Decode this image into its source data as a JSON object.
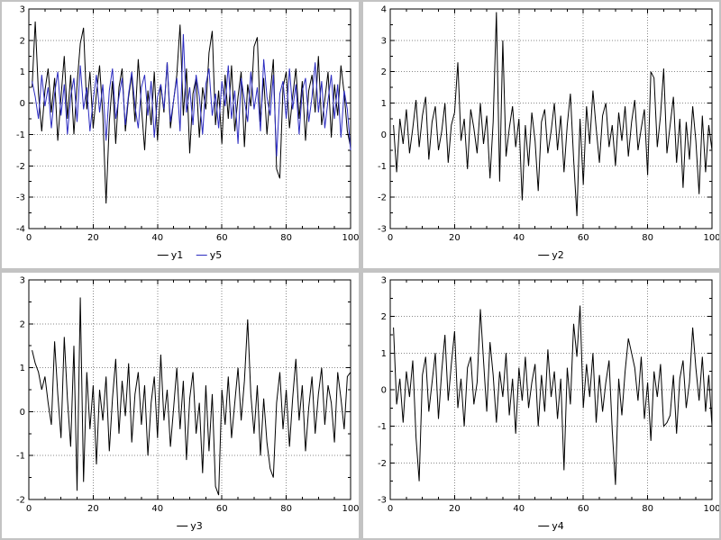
{
  "page": {
    "background_color": "#c3c3c3",
    "panel_background": "#ffffff",
    "grid_color": "#8a8a8a",
    "frame_color": "#000000"
  },
  "chart_data": [
    {
      "type": "line",
      "title": "",
      "xlabel": "",
      "ylabel": "",
      "x_range": [
        0,
        100
      ],
      "ylim": [
        -4,
        3
      ],
      "xticks": [
        0,
        20,
        40,
        60,
        80,
        100
      ],
      "ytick_step": 1,
      "grid": true,
      "legend_position": "bottom",
      "series": [
        {
          "name": "y1",
          "color": "#000000",
          "values": [
            0.5,
            2.6,
            0.3,
            -0.9,
            0.4,
            1.1,
            -0.3,
            0.8,
            -1.2,
            0.2,
            1.5,
            -0.5,
            0.9,
            -1.0,
            0.6,
            1.9,
            2.4,
            -0.2,
            1.0,
            -0.8,
            0.3,
            1.2,
            -0.4,
            -3.2,
            -0.6,
            0.7,
            -1.3,
            0.5,
            1.1,
            -0.9,
            0.2,
            0.9,
            -0.6,
            1.4,
            -0.1,
            -1.5,
            0.4,
            -0.7,
            1.0,
            -1.2,
            0.6,
            -0.3,
            1.3,
            -0.8,
            0.1,
            0.9,
            2.5,
            -0.4,
            1.1,
            -1.6,
            0.3,
            0.8,
            -1.1,
            0.5,
            -0.2,
            1.6,
            2.3,
            -0.7,
            0.4,
            -1.3,
            0.9,
            -0.5,
            1.2,
            -0.9,
            0.2,
            1.0,
            -1.4,
            0.6,
            -0.1,
            1.8,
            2.1,
            -0.6,
            0.8,
            -1.0,
            0.3,
            1.4,
            -2.1,
            -2.4,
            0.5,
            1.0,
            -0.8,
            0.2,
            1.1,
            -0.5,
            0.7,
            -1.2,
            0.4,
            0.9,
            -0.3,
            1.5,
            -0.7,
            0.1,
            1.0,
            -1.1,
            0.6,
            -0.4,
            1.2,
            0.3,
            -0.9,
            -1.4
          ]
        },
        {
          "name": "y5",
          "color": "#2b2bc0",
          "values": [
            0.7,
            0.2,
            -0.5,
            0.9,
            -0.1,
            0.5,
            -0.8,
            0.3,
            1.0,
            -0.4,
            0.6,
            -1.0,
            0.2,
            0.8,
            -0.6,
            1.2,
            -0.2,
            0.5,
            -0.9,
            0.1,
            0.9,
            -0.3,
            0.6,
            -1.2,
            0.4,
            1.1,
            -0.5,
            0.2,
            0.8,
            -0.7,
            0.3,
            1.0,
            -0.1,
            -0.8,
            0.5,
            0.9,
            -0.4,
            0.7,
            -1.1,
            0.2,
            0.6,
            -0.2,
            1.3,
            -0.6,
            0.1,
            0.8,
            -0.9,
            2.2,
            -0.3,
            0.5,
            -0.7,
            0.9,
            0.2,
            -1.0,
            0.6,
            1.1,
            -0.4,
            0.3,
            -0.8,
            0.7,
            -0.1,
            1.2,
            -0.5,
            0.4,
            -1.3,
            0.8,
            0.1,
            -0.6,
            1.0,
            -0.2,
            0.5,
            -0.9,
            1.4,
            0.2,
            -0.4,
            0.9,
            -1.7,
            0.3,
            0.7,
            -0.5,
            1.1,
            -0.2,
            0.6,
            -1.0,
            0.4,
            0.8,
            -0.6,
            0.2,
            1.3,
            -0.3,
            0.7,
            -0.8,
            0.1,
            0.9,
            -0.5,
            0.6,
            -1.1,
            0.4,
            -0.2,
            -1.5
          ]
        }
      ]
    },
    {
      "type": "line",
      "title": "",
      "xlabel": "",
      "ylabel": "",
      "x_range": [
        0,
        100
      ],
      "ylim": [
        -3,
        4
      ],
      "xticks": [
        0,
        20,
        40,
        60,
        80,
        100
      ],
      "ytick_step": 1,
      "grid": true,
      "legend_position": "bottom",
      "series": [
        {
          "name": "y2",
          "color": "#000000",
          "values": [
            0.3,
            -1.2,
            0.5,
            -0.3,
            0.8,
            -0.6,
            0.2,
            1.1,
            -0.4,
            0.6,
            1.2,
            -0.8,
            0.4,
            0.9,
            -0.5,
            0.1,
            1.0,
            -0.9,
            0.3,
            0.7,
            2.3,
            -0.2,
            0.5,
            -1.1,
            0.8,
            0.2,
            -0.6,
            1.0,
            -0.3,
            0.6,
            -1.4,
            0.4,
            3.9,
            -1.5,
            3.0,
            -0.7,
            0.2,
            0.9,
            -0.4,
            0.5,
            -2.1,
            0.3,
            -1.0,
            0.7,
            -0.2,
            -1.8,
            0.4,
            0.8,
            -0.6,
            0.1,
            1.0,
            -0.5,
            0.6,
            -1.2,
            0.3,
            1.3,
            -0.8,
            -2.6,
            0.5,
            -1.6,
            0.9,
            -0.3,
            1.4,
            0.2,
            -0.9,
            0.6,
            1.0,
            -0.4,
            0.3,
            -1.0,
            0.7,
            -0.2,
            0.9,
            -0.7,
            0.4,
            1.1,
            -0.5,
            0.2,
            0.8,
            -1.3,
            2.0,
            1.8,
            -0.4,
            0.6,
            2.1,
            -0.6,
            0.3,
            1.2,
            -0.9,
            0.5,
            -1.7,
            0.4,
            -0.8,
            0.9,
            -0.2,
            -1.9,
            0.6,
            -1.2,
            0.3,
            -0.5
          ]
        }
      ]
    },
    {
      "type": "line",
      "title": "",
      "xlabel": "",
      "ylabel": "",
      "x_range": [
        0,
        100
      ],
      "ylim": [
        -2,
        3
      ],
      "xticks": [
        0,
        20,
        40,
        60,
        80,
        100
      ],
      "ytick_step": 1,
      "grid": true,
      "legend_position": "bottom",
      "series": [
        {
          "name": "y3",
          "color": "#000000",
          "values": [
            1.4,
            1.1,
            0.9,
            0.5,
            0.8,
            0.2,
            -0.3,
            1.6,
            0.4,
            -0.6,
            1.7,
            0.3,
            -0.8,
            1.5,
            -1.8,
            2.6,
            -1.6,
            0.9,
            -0.4,
            0.6,
            -1.2,
            0.5,
            -0.2,
            0.8,
            -0.9,
            0.3,
            1.2,
            -0.5,
            0.7,
            -0.1,
            1.1,
            -0.7,
            0.4,
            0.9,
            -0.3,
            0.6,
            -1.0,
            0.2,
            0.8,
            -0.6,
            1.3,
            -0.2,
            0.5,
            -0.8,
            0.1,
            1.0,
            -0.4,
            0.7,
            -1.1,
            0.3,
            0.9,
            -0.5,
            0.2,
            -1.4,
            0.6,
            -0.9,
            0.4,
            -1.7,
            -1.9,
            0.5,
            -0.3,
            0.8,
            -0.6,
            0.2,
            1.0,
            -0.2,
            0.7,
            2.1,
            0.4,
            -0.5,
            0.6,
            -1.0,
            0.3,
            -0.7,
            -1.3,
            -1.5,
            0.2,
            0.9,
            -0.4,
            0.5,
            -0.8,
            0.3,
            1.2,
            -0.2,
            0.6,
            -0.9,
            0.1,
            0.8,
            -0.5,
            0.4,
            1.0,
            -0.3,
            0.6,
            0.2,
            -0.7,
            0.9,
            0.3,
            -0.4,
            0.8,
            0.9
          ]
        }
      ]
    },
    {
      "type": "line",
      "title": "",
      "xlabel": "",
      "ylabel": "",
      "x_range": [
        0,
        100
      ],
      "ylim": [
        -3,
        3
      ],
      "xticks": [
        0,
        20,
        40,
        60,
        80,
        100
      ],
      "ytick_step": 1,
      "grid": true,
      "legend_position": "bottom",
      "series": [
        {
          "name": "y4",
          "color": "#000000",
          "values": [
            1.7,
            -0.4,
            0.3,
            -0.9,
            0.5,
            -0.2,
            0.8,
            -1.3,
            -2.5,
            0.4,
            0.9,
            -0.6,
            0.2,
            1.0,
            -0.8,
            0.5,
            1.5,
            -0.3,
            0.7,
            1.6,
            -0.5,
            0.3,
            -1.0,
            0.6,
            0.9,
            -0.4,
            0.2,
            2.2,
            0.8,
            -0.6,
            1.3,
            0.4,
            -0.9,
            0.5,
            -0.2,
            1.0,
            -0.7,
            0.3,
            -1.2,
            0.6,
            -0.3,
            0.9,
            -0.5,
            0.2,
            0.7,
            -1.0,
            0.4,
            -0.6,
            1.1,
            -0.2,
            0.5,
            -0.8,
            0.3,
            -2.2,
            0.6,
            -0.4,
            1.8,
            0.9,
            2.3,
            -0.5,
            0.7,
            -0.2,
            1.0,
            -0.9,
            0.4,
            -0.6,
            0.2,
            0.8,
            -1.1,
            -2.6,
            0.3,
            -0.7,
            0.5,
            1.4,
            1.0,
            0.6,
            -0.3,
            0.9,
            -0.8,
            0.2,
            -1.4,
            0.5,
            -0.2,
            0.7,
            -1.0,
            -0.9,
            -0.7,
            0.4,
            -1.2,
            0.3,
            0.8,
            -0.5,
            0.2,
            1.7,
            0.6,
            -0.3,
            0.9,
            -0.6,
            0.4,
            -1.0
          ]
        }
      ]
    }
  ]
}
